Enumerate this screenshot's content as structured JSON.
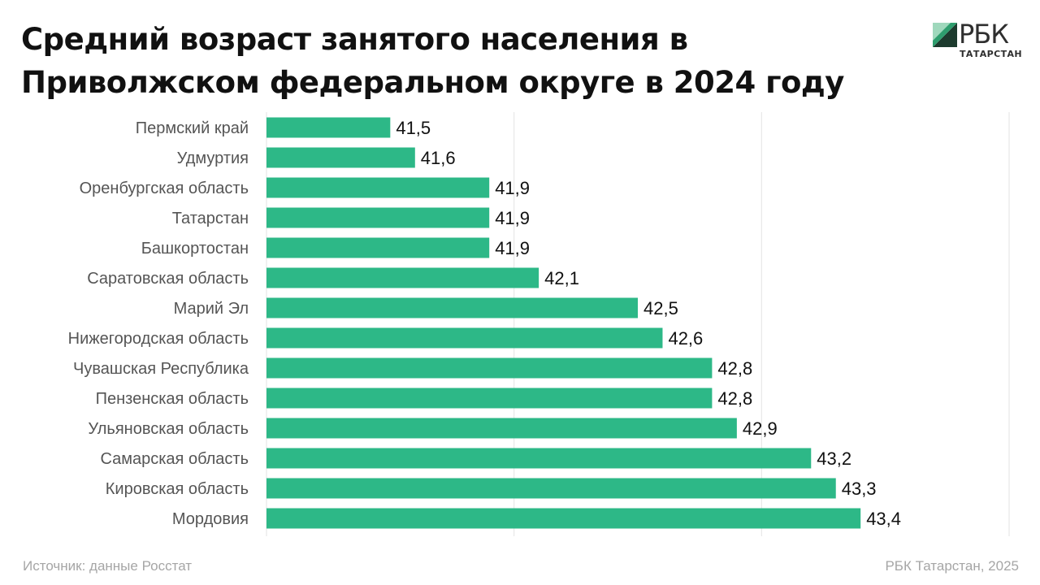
{
  "title": "Средний возраст занятого населения в Приволжском федеральном округе в 2024 году",
  "logo": {
    "name": "РБК",
    "subtitle": "ТАТАРСТАН",
    "colors": [
      "#2e9e6e",
      "#9fd8bc",
      "#1d3b2e"
    ]
  },
  "source": "Источник: данные Росстат",
  "credit": "РБК Татарстан, 2025",
  "colors": {
    "bar": "#2db887",
    "grid": "#e3e3e3",
    "label": "#555555",
    "value": "#111111"
  },
  "chart_data": {
    "type": "bar",
    "orientation": "horizontal",
    "categories": [
      "Пермский край",
      "Удмуртия",
      "Оренбургская область",
      "Татарстан",
      "Башкортостан",
      "Саратовская область",
      "Марий Эл",
      "Нижегородская область",
      "Чувашская Республика",
      "Пензенская область",
      "Ульяновская область",
      "Самарская область",
      "Кировская область",
      "Мордовия"
    ],
    "values": [
      41.5,
      41.6,
      41.9,
      41.9,
      41.9,
      42.1,
      42.5,
      42.6,
      42.8,
      42.8,
      42.9,
      43.2,
      43.3,
      43.4
    ],
    "value_labels": [
      "41,5",
      "41,6",
      "41,9",
      "41,9",
      "41,9",
      "42,1",
      "42,5",
      "42,6",
      "42,8",
      "42,8",
      "42,9",
      "43,2",
      "43,3",
      "43,4"
    ],
    "xlim": [
      41,
      44
    ],
    "grid": true,
    "x_ticks_shown": false,
    "legend": "none",
    "xlabel": "",
    "ylabel": ""
  }
}
